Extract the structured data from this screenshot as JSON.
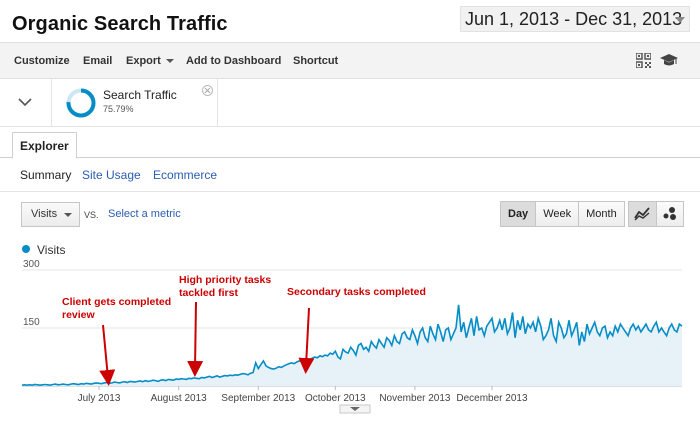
{
  "header": {
    "title": "Organic Search Traffic",
    "date_start": "Jun 1, 2013",
    "date_sep": "-",
    "date_end": "Dec 31, 2013"
  },
  "toolbar": {
    "customize": "Customize",
    "email": "Email",
    "export": "Export",
    "add_to_dashboard": "Add to Dashboard",
    "shortcut": "Shortcut",
    "icons": [
      "qr-code-icon",
      "graduation-cap-icon"
    ]
  },
  "segment": {
    "name": "Search Traffic",
    "percent": "75.79%",
    "percent_value": 75.79
  },
  "tabs": {
    "explorer": "Explorer"
  },
  "subtabs": {
    "summary": "Summary",
    "site_usage": "Site Usage",
    "ecommerce": "Ecommerce"
  },
  "controls": {
    "metric": "Visits",
    "vs": "VS.",
    "select_metric": "Select a metric",
    "ranges": [
      "Day",
      "Week",
      "Month"
    ],
    "active_range": "Day",
    "views": [
      "line-chart-icon",
      "motion-chart-icon"
    ]
  },
  "colors": {
    "series": "#058dc7",
    "annotation": "#cc0000",
    "link": "#2a5db0"
  },
  "chart_data": {
    "type": "area",
    "title": "",
    "series": [
      {
        "name": "Visits",
        "values": [
          2,
          3,
          2,
          3,
          2,
          4,
          3,
          2,
          3,
          4,
          3,
          2,
          4,
          5,
          3,
          4,
          5,
          4,
          3,
          5,
          6,
          5,
          4,
          6,
          5,
          7,
          6,
          5,
          7,
          8,
          7,
          6,
          8,
          9,
          7,
          8,
          10,
          9,
          8,
          10,
          11,
          9,
          12,
          11,
          10,
          12,
          13,
          11,
          14,
          12,
          13,
          15,
          14,
          12,
          15,
          16,
          14,
          17,
          16,
          15,
          18,
          17,
          19,
          18,
          17,
          20,
          19,
          21,
          20,
          19,
          22,
          21,
          23,
          25,
          22,
          24,
          26,
          23,
          25,
          27,
          26,
          28,
          27,
          29,
          28,
          30,
          32,
          31,
          29,
          33,
          35,
          60,
          45,
          55,
          65,
          52,
          48,
          45,
          44,
          46,
          50,
          48,
          52,
          55,
          58,
          60,
          58,
          62,
          65,
          63,
          66,
          70,
          68,
          72,
          75,
          73,
          78,
          76,
          80,
          78,
          85,
          82,
          90,
          75,
          70,
          95,
          88,
          85,
          100,
          92,
          80,
          105,
          110,
          95,
          100,
          90,
          115,
          105,
          98,
          120,
          110,
          100,
          125,
          118,
          105,
          130,
          115,
          110,
          135,
          140,
          125,
          120,
          145,
          130,
          110,
          140,
          150,
          125,
          115,
          155,
          135,
          120,
          160,
          140,
          115,
          145,
          150,
          120,
          135,
          150,
          210,
          140,
          165,
          125,
          150,
          175,
          130,
          180,
          145,
          150,
          130,
          155,
          165,
          175,
          140,
          150,
          170,
          145,
          175,
          135,
          150,
          190,
          125,
          170,
          145,
          180,
          135,
          160,
          150,
          165,
          140,
          175,
          155,
          120,
          130,
          145,
          175,
          130,
          115,
          165,
          150,
          125,
          135,
          170,
          130,
          145,
          165,
          105,
          140,
          115,
          160,
          135,
          150,
          165,
          140,
          130,
          150,
          155,
          125,
          140,
          130,
          155,
          140,
          160,
          150,
          140,
          130,
          150,
          160,
          145,
          155,
          140,
          150,
          160,
          145,
          140,
          155,
          165,
          140,
          150,
          140,
          130,
          150,
          160,
          145,
          140,
          160,
          155
        ]
      }
    ],
    "y_ticks": [
      150,
      300
    ],
    "ylim": [
      0,
      300
    ],
    "x_tick_labels": [
      "July 2013",
      "August 2013",
      "September 2013",
      "October 2013",
      "November 2013",
      "December 2013"
    ],
    "annotations": [
      {
        "text": [
          "Client gets completed",
          "review"
        ]
      },
      {
        "text": [
          "High priority tasks",
          "tackled first"
        ]
      },
      {
        "text": [
          "Secondary tasks completed"
        ]
      }
    ],
    "legend": "top-left",
    "grid": true
  }
}
